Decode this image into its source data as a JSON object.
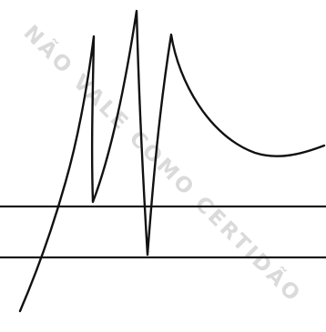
{
  "watermark": {
    "text": "NÃO VALE COMO CERTIDÃO",
    "color": "#bcbcbc"
  },
  "signature": {
    "ink_color": "#111111"
  },
  "lines": {
    "color": "#1a1a1a"
  }
}
